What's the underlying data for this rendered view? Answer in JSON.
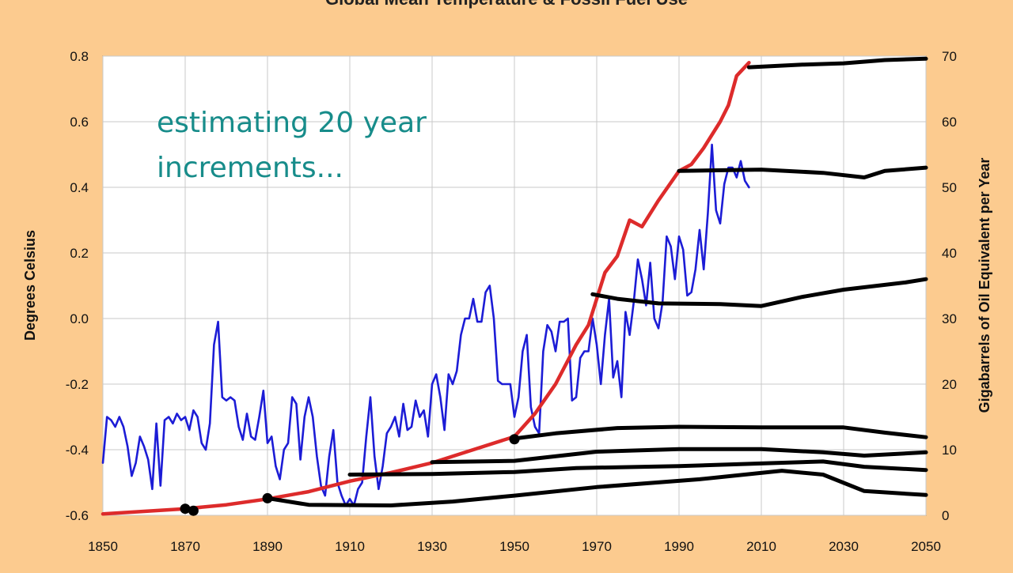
{
  "chart_data": {
    "type": "line",
    "title": "Global Mean Temperature & Fossil Fuel Use",
    "xlabel": "",
    "ylabel_left": "Degrees Celsius",
    "ylabel_right": "Gigabarrels of Oil Equivalent per Year",
    "xlim": [
      1850,
      2050
    ],
    "ylim_left": [
      -0.6,
      0.8
    ],
    "ylim_right": [
      0,
      70
    ],
    "grid": true,
    "x_ticks": [
      "1850",
      "1870",
      "1890",
      "1910",
      "1930",
      "1950",
      "1970",
      "1990",
      "2010",
      "2030",
      "2050"
    ],
    "y_ticks_left": [
      "0.8",
      "0.6",
      "0.4",
      "0.2",
      "0.0",
      "-0.2",
      "-0.4",
      "-0.6"
    ],
    "y_ticks_right": [
      "70",
      "60",
      "50",
      "40",
      "30",
      "20",
      "10",
      "0"
    ],
    "annotation": {
      "lines": [
        "estimating 20 year",
        "increments..."
      ]
    },
    "series": [
      {
        "axis": "left",
        "color": "#1c1cd6",
        "points": [
          [
            1850,
            -0.44
          ],
          [
            1851,
            -0.3
          ],
          [
            1852,
            -0.31
          ],
          [
            1853,
            -0.33
          ],
          [
            1854,
            -0.3
          ],
          [
            1855,
            -0.33
          ],
          [
            1856,
            -0.39
          ],
          [
            1857,
            -0.48
          ],
          [
            1858,
            -0.44
          ],
          [
            1859,
            -0.36
          ],
          [
            1860,
            -0.39
          ],
          [
            1861,
            -0.43
          ],
          [
            1862,
            -0.52
          ],
          [
            1863,
            -0.32
          ],
          [
            1864,
            -0.51
          ],
          [
            1865,
            -0.31
          ],
          [
            1866,
            -0.3
          ],
          [
            1867,
            -0.32
          ],
          [
            1868,
            -0.29
          ],
          [
            1869,
            -0.31
          ],
          [
            1870,
            -0.3
          ],
          [
            1871,
            -0.34
          ],
          [
            1872,
            -0.28
          ],
          [
            1873,
            -0.3
          ],
          [
            1874,
            -0.38
          ],
          [
            1875,
            -0.4
          ],
          [
            1876,
            -0.32
          ],
          [
            1877,
            -0.08
          ],
          [
            1878,
            -0.01
          ],
          [
            1879,
            -0.24
          ],
          [
            1880,
            -0.25
          ],
          [
            1881,
            -0.24
          ],
          [
            1882,
            -0.25
          ],
          [
            1883,
            -0.33
          ],
          [
            1884,
            -0.37
          ],
          [
            1885,
            -0.29
          ],
          [
            1886,
            -0.36
          ],
          [
            1887,
            -0.37
          ],
          [
            1888,
            -0.3
          ],
          [
            1889,
            -0.22
          ],
          [
            1890,
            -0.38
          ],
          [
            1891,
            -0.36
          ],
          [
            1892,
            -0.45
          ],
          [
            1893,
            -0.49
          ],
          [
            1894,
            -0.4
          ],
          [
            1895,
            -0.38
          ],
          [
            1896,
            -0.24
          ],
          [
            1897,
            -0.26
          ],
          [
            1898,
            -0.43
          ],
          [
            1899,
            -0.3
          ],
          [
            1900,
            -0.24
          ],
          [
            1901,
            -0.3
          ],
          [
            1902,
            -0.42
          ],
          [
            1903,
            -0.51
          ],
          [
            1904,
            -0.54
          ],
          [
            1905,
            -0.42
          ],
          [
            1906,
            -0.34
          ],
          [
            1907,
            -0.5
          ],
          [
            1908,
            -0.54
          ],
          [
            1909,
            -0.57
          ],
          [
            1910,
            -0.55
          ],
          [
            1911,
            -0.57
          ],
          [
            1912,
            -0.52
          ],
          [
            1913,
            -0.5
          ],
          [
            1914,
            -0.36
          ],
          [
            1915,
            -0.24
          ],
          [
            1916,
            -0.42
          ],
          [
            1917,
            -0.52
          ],
          [
            1918,
            -0.45
          ],
          [
            1919,
            -0.35
          ],
          [
            1920,
            -0.33
          ],
          [
            1921,
            -0.3
          ],
          [
            1922,
            -0.36
          ],
          [
            1923,
            -0.26
          ],
          [
            1924,
            -0.34
          ],
          [
            1925,
            -0.33
          ],
          [
            1926,
            -0.25
          ],
          [
            1927,
            -0.3
          ],
          [
            1928,
            -0.28
          ],
          [
            1929,
            -0.36
          ],
          [
            1930,
            -0.2
          ],
          [
            1931,
            -0.17
          ],
          [
            1932,
            -0.24
          ],
          [
            1933,
            -0.34
          ],
          [
            1934,
            -0.17
          ],
          [
            1935,
            -0.2
          ],
          [
            1936,
            -0.16
          ],
          [
            1937,
            -0.05
          ],
          [
            1938,
            0.0
          ],
          [
            1939,
            0.0
          ],
          [
            1940,
            0.06
          ],
          [
            1941,
            -0.01
          ],
          [
            1942,
            -0.01
          ],
          [
            1943,
            0.08
          ],
          [
            1944,
            0.1
          ],
          [
            1945,
            0.0
          ],
          [
            1946,
            -0.19
          ],
          [
            1947,
            -0.2
          ],
          [
            1948,
            -0.2
          ],
          [
            1949,
            -0.2
          ],
          [
            1950,
            -0.3
          ],
          [
            1951,
            -0.24
          ],
          [
            1952,
            -0.1
          ],
          [
            1953,
            -0.05
          ],
          [
            1954,
            -0.27
          ],
          [
            1955,
            -0.33
          ],
          [
            1956,
            -0.35
          ],
          [
            1957,
            -0.1
          ],
          [
            1958,
            -0.02
          ],
          [
            1959,
            -0.04
          ],
          [
            1960,
            -0.1
          ],
          [
            1961,
            -0.01
          ],
          [
            1962,
            -0.01
          ],
          [
            1963,
            0.0
          ],
          [
            1964,
            -0.25
          ],
          [
            1965,
            -0.24
          ],
          [
            1966,
            -0.12
          ],
          [
            1967,
            -0.1
          ],
          [
            1968,
            -0.1
          ],
          [
            1969,
            0.0
          ],
          [
            1970,
            -0.08
          ],
          [
            1971,
            -0.2
          ],
          [
            1972,
            -0.05
          ],
          [
            1973,
            0.06
          ],
          [
            1974,
            -0.18
          ],
          [
            1975,
            -0.13
          ],
          [
            1976,
            -0.24
          ],
          [
            1977,
            0.02
          ],
          [
            1978,
            -0.05
          ],
          [
            1979,
            0.05
          ],
          [
            1980,
            0.18
          ],
          [
            1981,
            0.12
          ],
          [
            1982,
            0.04
          ],
          [
            1983,
            0.17
          ],
          [
            1984,
            0.0
          ],
          [
            1985,
            -0.03
          ],
          [
            1986,
            0.05
          ],
          [
            1987,
            0.25
          ],
          [
            1988,
            0.22
          ],
          [
            1989,
            0.12
          ],
          [
            1990,
            0.25
          ],
          [
            1991,
            0.21
          ],
          [
            1992,
            0.07
          ],
          [
            1993,
            0.08
          ],
          [
            1994,
            0.15
          ],
          [
            1995,
            0.27
          ],
          [
            1996,
            0.15
          ],
          [
            1997,
            0.32
          ],
          [
            1998,
            0.53
          ],
          [
            1999,
            0.33
          ],
          [
            2000,
            0.29
          ],
          [
            2001,
            0.41
          ],
          [
            2002,
            0.46
          ],
          [
            2003,
            0.46
          ],
          [
            2004,
            0.43
          ],
          [
            2005,
            0.48
          ],
          [
            2006,
            0.42
          ],
          [
            2007,
            0.4
          ]
        ]
      },
      {
        "axis": "right",
        "color": "#dd2b2b",
        "points": [
          [
            1850,
            0.2
          ],
          [
            1860,
            0.6
          ],
          [
            1870,
            1.0
          ],
          [
            1880,
            1.6
          ],
          [
            1890,
            2.5
          ],
          [
            1900,
            3.6
          ],
          [
            1910,
            5.2
          ],
          [
            1920,
            6.5
          ],
          [
            1930,
            8.0
          ],
          [
            1940,
            10.0
          ],
          [
            1950,
            12.0
          ],
          [
            1955,
            15.5
          ],
          [
            1960,
            20.0
          ],
          [
            1965,
            26.0
          ],
          [
            1968,
            29.0
          ],
          [
            1972,
            37.0
          ],
          [
            1975,
            39.5
          ],
          [
            1978,
            45.0
          ],
          [
            1981,
            44.0
          ],
          [
            1985,
            48.0
          ],
          [
            1990,
            52.5
          ],
          [
            1993,
            53.5
          ],
          [
            1996,
            56.0
          ],
          [
            2000,
            60.0
          ],
          [
            2002,
            62.5
          ],
          [
            2004,
            67.0
          ],
          [
            2007,
            69.0
          ]
        ]
      },
      {
        "axis": "right",
        "color": "#000000",
        "points": [
          [
            2007,
            68.3
          ],
          [
            2020,
            68.7
          ],
          [
            2030,
            68.9
          ],
          [
            2040,
            69.4
          ],
          [
            2050,
            69.6
          ]
        ]
      },
      {
        "axis": "right",
        "color": "#000000",
        "points": [
          [
            1990,
            52.5
          ],
          [
            2010,
            52.7
          ],
          [
            2025,
            52.2
          ],
          [
            2035,
            51.5
          ],
          [
            2040,
            52.5
          ],
          [
            2050,
            53.0
          ]
        ]
      },
      {
        "axis": "right",
        "color": "#000000",
        "points": [
          [
            1969,
            33.7
          ],
          [
            1975,
            33.0
          ],
          [
            1985,
            32.3
          ],
          [
            2000,
            32.2
          ],
          [
            2010,
            31.9
          ],
          [
            2020,
            33.3
          ],
          [
            2030,
            34.4
          ],
          [
            2045,
            35.5
          ],
          [
            2050,
            36.0
          ]
        ]
      },
      {
        "axis": "right",
        "color": "#000000",
        "points": [
          [
            1950,
            11.7
          ],
          [
            1960,
            12.5
          ],
          [
            1975,
            13.3
          ],
          [
            1990,
            13.5
          ],
          [
            2010,
            13.4
          ],
          [
            2030,
            13.4
          ],
          [
            2040,
            12.6
          ],
          [
            2050,
            11.9
          ]
        ]
      },
      {
        "axis": "right",
        "color": "#000000",
        "points": [
          [
            1930,
            8.1
          ],
          [
            1950,
            8.3
          ],
          [
            1970,
            9.7
          ],
          [
            1990,
            10.1
          ],
          [
            2010,
            10.1
          ],
          [
            2025,
            9.6
          ],
          [
            2035,
            9.1
          ],
          [
            2050,
            9.6
          ]
        ]
      },
      {
        "axis": "right",
        "color": "#000000",
        "points": [
          [
            1910,
            6.2
          ],
          [
            1930,
            6.3
          ],
          [
            1950,
            6.6
          ],
          [
            1965,
            7.2
          ],
          [
            1990,
            7.5
          ],
          [
            2010,
            7.9
          ],
          [
            2025,
            8.2
          ],
          [
            2035,
            7.4
          ],
          [
            2050,
            6.9
          ]
        ]
      },
      {
        "axis": "right",
        "color": "#000000",
        "points": [
          [
            1890,
            2.6
          ],
          [
            1900,
            1.6
          ],
          [
            1920,
            1.5
          ],
          [
            1935,
            2.1
          ],
          [
            1950,
            3.0
          ],
          [
            1970,
            4.3
          ],
          [
            1995,
            5.5
          ],
          [
            2015,
            6.8
          ],
          [
            2025,
            6.2
          ],
          [
            2035,
            3.7
          ],
          [
            2050,
            3.1
          ]
        ]
      }
    ],
    "markers": [
      [
        1870,
        1.0
      ],
      [
        1872,
        0.7
      ],
      [
        1890,
        2.6
      ],
      [
        1950,
        11.6
      ]
    ]
  }
}
